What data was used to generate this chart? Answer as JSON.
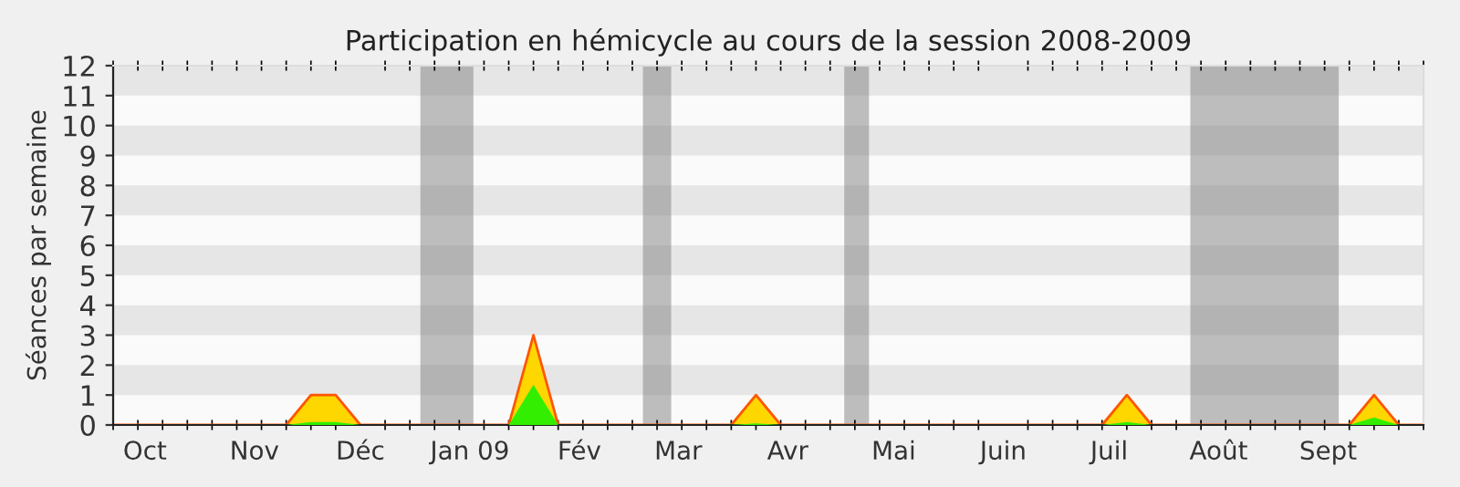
{
  "chart_data": {
    "type": "area",
    "title": "Participation en hémicycle au cours de la session 2008-2009",
    "ylabel": "Séances par semaine",
    "x": [
      "2008-09-22",
      "2008-09-29",
      "2008-10-06",
      "2008-10-13",
      "2008-10-20",
      "2008-10-27",
      "2008-11-03",
      "2008-11-10",
      "2008-11-17",
      "2008-11-24",
      "2008-12-01",
      "2008-12-08",
      "2008-12-15",
      "2008-12-22",
      "2008-12-29",
      "2009-01-05",
      "2009-01-12",
      "2009-01-19",
      "2009-01-26",
      "2009-02-02",
      "2009-02-09",
      "2009-02-16",
      "2009-02-23",
      "2009-03-02",
      "2009-03-09",
      "2009-03-16",
      "2009-03-23",
      "2009-03-30",
      "2009-04-06",
      "2009-04-13",
      "2009-04-20",
      "2009-04-27",
      "2009-05-04",
      "2009-05-11",
      "2009-05-18",
      "2009-05-25",
      "2009-06-01",
      "2009-06-08",
      "2009-06-15",
      "2009-06-22",
      "2009-06-29",
      "2009-07-06",
      "2009-07-13",
      "2009-07-20",
      "2009-07-27",
      "2009-08-03",
      "2009-08-10",
      "2009-08-17",
      "2009-08-24",
      "2009-08-31",
      "2009-09-07",
      "2009-09-14",
      "2009-09-21",
      "2009-09-28"
    ],
    "series": [
      {
        "color": "#ffd700",
        "values": [
          0,
          0,
          0,
          0,
          0,
          0,
          0,
          0,
          1,
          1,
          0,
          0,
          0,
          0,
          0,
          0,
          0,
          3,
          0,
          0,
          0,
          0,
          0,
          0,
          0,
          0,
          1,
          0,
          0,
          0,
          0,
          0,
          0,
          0,
          0,
          0,
          0,
          0,
          0,
          0,
          0,
          1,
          0,
          0,
          0,
          0,
          0,
          0,
          0,
          0,
          0,
          1,
          0,
          0
        ]
      },
      {
        "color": "#33ee00",
        "values": [
          0,
          0,
          0,
          0,
          0,
          0,
          0,
          0,
          0.1,
          0.1,
          0,
          0,
          0,
          0,
          0,
          0,
          0,
          1.35,
          0,
          0,
          0,
          0,
          0,
          0,
          0,
          0,
          0.05,
          0,
          0,
          0,
          0,
          0,
          0,
          0,
          0,
          0,
          0,
          0,
          0,
          0,
          0,
          0.1,
          0,
          0,
          0,
          0,
          0,
          0,
          0,
          0,
          0,
          0.25,
          0,
          0
        ]
      }
    ],
    "xlim": [
      "2008-09-22",
      "2009-09-28"
    ],
    "ylim": [
      0,
      12
    ],
    "yticks": [
      0,
      1,
      2,
      3,
      4,
      5,
      6,
      7,
      8,
      9,
      10,
      11,
      12
    ],
    "xticks": [
      {
        "value": "2008-10-01",
        "label": "Oct"
      },
      {
        "value": "2008-11-01",
        "label": "Nov"
      },
      {
        "value": "2008-12-01",
        "label": "Déc"
      },
      {
        "value": "2009-01-01",
        "label": "Jan 09"
      },
      {
        "value": "2009-02-01",
        "label": "Fév"
      },
      {
        "value": "2009-03-01",
        "label": "Mar"
      },
      {
        "value": "2009-04-01",
        "label": "Avr"
      },
      {
        "value": "2009-05-01",
        "label": "Mai"
      },
      {
        "value": "2009-06-01",
        "label": "Juin"
      },
      {
        "value": "2009-07-01",
        "label": "Juil"
      },
      {
        "value": "2009-08-01",
        "label": "Août"
      },
      {
        "value": "2009-09-01",
        "label": "Sept"
      }
    ],
    "bands": [
      {
        "axis": "x",
        "from": "2008-12-18",
        "to": "2009-01-02",
        "color": "#808080"
      },
      {
        "axis": "x",
        "from": "2009-02-19",
        "to": "2009-02-27",
        "color": "#808080"
      },
      {
        "axis": "x",
        "from": "2009-04-17",
        "to": "2009-04-24",
        "color": "#808080"
      },
      {
        "axis": "x",
        "from": "2009-07-24",
        "to": "2009-09-04",
        "color": "#808080"
      }
    ],
    "legend": false
  }
}
